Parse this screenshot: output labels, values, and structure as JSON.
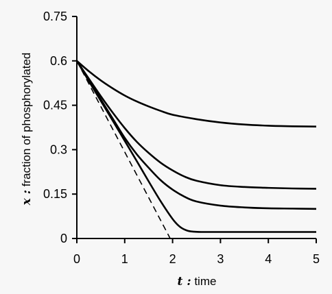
{
  "chart_data": {
    "type": "line",
    "title": "",
    "xlabel_var": "t :",
    "xlabel_text": " time",
    "ylabel_var": "x :",
    "ylabel_text": " fraction of phosphorylated",
    "xlim": [
      0,
      5
    ],
    "ylim": [
      0,
      0.75
    ],
    "x_ticks": [
      "0",
      "1",
      "2",
      "3",
      "4",
      "5"
    ],
    "y_ticks": [
      "0",
      "0.15",
      "0.3",
      "0.45",
      "0.6",
      "0.75"
    ],
    "grid": false,
    "legend": "none",
    "line_color": "#000000",
    "series": [
      {
        "style": "solid",
        "x": [
          0,
          0.25,
          0.5,
          0.75,
          1,
          1.25,
          1.5,
          1.75,
          2,
          2.5,
          3,
          3.5,
          4,
          4.5,
          5
        ],
        "y": [
          0.6,
          0.565,
          0.534,
          0.507,
          0.483,
          0.463,
          0.446,
          0.431,
          0.418,
          0.403,
          0.392,
          0.385,
          0.381,
          0.379,
          0.378
        ]
      },
      {
        "style": "solid",
        "x": [
          0,
          0.25,
          0.5,
          0.75,
          1,
          1.25,
          1.5,
          1.75,
          2,
          2.25,
          2.5,
          3,
          3.5,
          4,
          4.5,
          5
        ],
        "y": [
          0.6,
          0.54,
          0.481,
          0.425,
          0.373,
          0.327,
          0.289,
          0.256,
          0.23,
          0.209,
          0.195,
          0.18,
          0.174,
          0.171,
          0.169,
          0.168
        ]
      },
      {
        "style": "solid",
        "x": [
          0,
          0.25,
          0.5,
          0.75,
          1,
          1.25,
          1.5,
          1.75,
          2,
          2.25,
          2.5,
          3,
          3.5,
          4,
          4.5,
          5
        ],
        "y": [
          0.6,
          0.535,
          0.47,
          0.405,
          0.34,
          0.285,
          0.239,
          0.197,
          0.165,
          0.141,
          0.125,
          0.111,
          0.105,
          0.102,
          0.101,
          0.1
        ]
      },
      {
        "style": "solid",
        "x": [
          0,
          0.25,
          0.5,
          0.75,
          1,
          1.25,
          1.5,
          1.75,
          2,
          2.15,
          2.3,
          2.45,
          2.6,
          3,
          3.5,
          4,
          4.5,
          5
        ],
        "y": [
          0.6,
          0.532,
          0.465,
          0.398,
          0.33,
          0.262,
          0.193,
          0.126,
          0.066,
          0.04,
          0.027,
          0.023,
          0.022,
          0.022,
          0.022,
          0.022,
          0.022,
          0.022
        ]
      },
      {
        "style": "dashed",
        "x": [
          0,
          1.95
        ],
        "y": [
          0.6,
          0.0
        ]
      }
    ]
  }
}
